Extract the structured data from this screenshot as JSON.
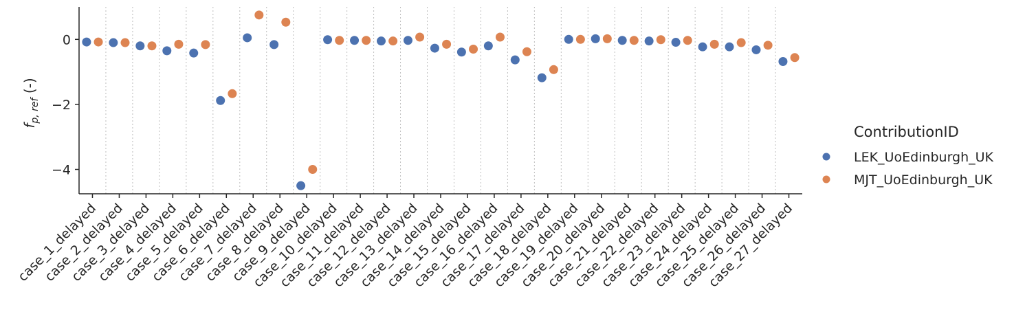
{
  "chart_data": {
    "type": "scatter",
    "ylabel": {
      "base": "f",
      "sub": "p, ref",
      "suffix": " (-)"
    },
    "ylim": [
      -4.75,
      1.0
    ],
    "yticks": [
      0,
      -2,
      -4
    ],
    "grid": "vertical dotted",
    "legend_title": "ContributionID",
    "legend_position": "right",
    "categories": [
      "case_1_delayed",
      "case_2_delayed",
      "case_3_delayed",
      "case_4_delayed",
      "case_5_delayed",
      "case_6_delayed",
      "case_7_delayed",
      "case_8_delayed",
      "case_9_delayed",
      "case_10_delayed",
      "case_11_delayed",
      "case_12_delayed",
      "case_13_delayed",
      "case_14_delayed",
      "case_15_delayed",
      "case_16_delayed",
      "case_17_delayed",
      "case_18_delayed",
      "case_19_delayed",
      "case_20_delayed",
      "case_21_delayed",
      "case_22_delayed",
      "case_23_delayed",
      "case_24_delayed",
      "case_25_delayed",
      "case_26_delayed",
      "case_27_delayed"
    ],
    "series": [
      {
        "name": "LEK_UoEdinburgh_UK",
        "color": "#4c72b0",
        "values": [
          -0.08,
          -0.1,
          -0.2,
          -0.35,
          -0.42,
          -1.88,
          0.05,
          -0.16,
          -4.5,
          -0.01,
          -0.03,
          -0.05,
          -0.03,
          -0.27,
          -0.39,
          -0.2,
          -0.63,
          -1.18,
          0.0,
          0.02,
          -0.03,
          -0.05,
          -0.09,
          -0.23,
          -0.23,
          -0.32,
          -0.68
        ]
      },
      {
        "name": "MJT_UoEdinburgh_UK",
        "color": "#dd8452",
        "values": [
          -0.08,
          -0.1,
          -0.2,
          -0.15,
          -0.16,
          -1.67,
          0.75,
          0.53,
          -4.0,
          -0.03,
          -0.03,
          -0.05,
          0.07,
          -0.15,
          -0.3,
          0.07,
          -0.38,
          -0.93,
          0.0,
          0.02,
          -0.03,
          -0.01,
          -0.03,
          -0.15,
          -0.1,
          -0.18,
          -0.56
        ]
      }
    ]
  }
}
